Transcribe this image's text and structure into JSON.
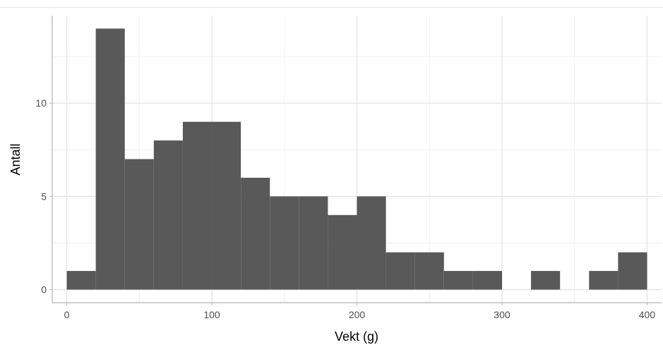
{
  "chart_data": {
    "type": "bar",
    "title": "",
    "xlabel": "Vekt (g)",
    "ylabel": "Antall",
    "bin_width": 20,
    "bins": [
      {
        "x_start": 0,
        "x_end": 20,
        "count": 1
      },
      {
        "x_start": 20,
        "x_end": 40,
        "count": 14
      },
      {
        "x_start": 40,
        "x_end": 60,
        "count": 7
      },
      {
        "x_start": 60,
        "x_end": 80,
        "count": 8
      },
      {
        "x_start": 80,
        "x_end": 100,
        "count": 9
      },
      {
        "x_start": 100,
        "x_end": 120,
        "count": 9
      },
      {
        "x_start": 120,
        "x_end": 140,
        "count": 6
      },
      {
        "x_start": 140,
        "x_end": 160,
        "count": 5
      },
      {
        "x_start": 160,
        "x_end": 180,
        "count": 5
      },
      {
        "x_start": 180,
        "x_end": 200,
        "count": 4
      },
      {
        "x_start": 200,
        "x_end": 220,
        "count": 5
      },
      {
        "x_start": 220,
        "x_end": 240,
        "count": 2
      },
      {
        "x_start": 240,
        "x_end": 260,
        "count": 2
      },
      {
        "x_start": 260,
        "x_end": 280,
        "count": 1
      },
      {
        "x_start": 280,
        "x_end": 300,
        "count": 1
      },
      {
        "x_start": 300,
        "x_end": 320,
        "count": 0
      },
      {
        "x_start": 320,
        "x_end": 340,
        "count": 1
      },
      {
        "x_start": 340,
        "x_end": 360,
        "count": 0
      },
      {
        "x_start": 360,
        "x_end": 380,
        "count": 1
      },
      {
        "x_start": 380,
        "x_end": 400,
        "count": 2
      }
    ],
    "x_ticks": [
      0,
      100,
      200,
      300,
      400
    ],
    "x_tick_labels": [
      "0",
      "100",
      "200",
      "300",
      "400"
    ],
    "y_ticks": [
      0,
      5,
      10
    ],
    "y_tick_labels": [
      "0",
      "5",
      "10"
    ],
    "xlim": [
      -10,
      410
    ],
    "ylim": [
      -0.7,
      14.7
    ],
    "grid": true,
    "legend": "none",
    "colors": {
      "bar_fill": "#595959",
      "grid_major": "#e6e6e6",
      "grid_minor": "#f0f0f0",
      "panel_border": "#b3b3b3",
      "tick_text": "#4d4d4d",
      "axis_title": "#000000"
    }
  }
}
